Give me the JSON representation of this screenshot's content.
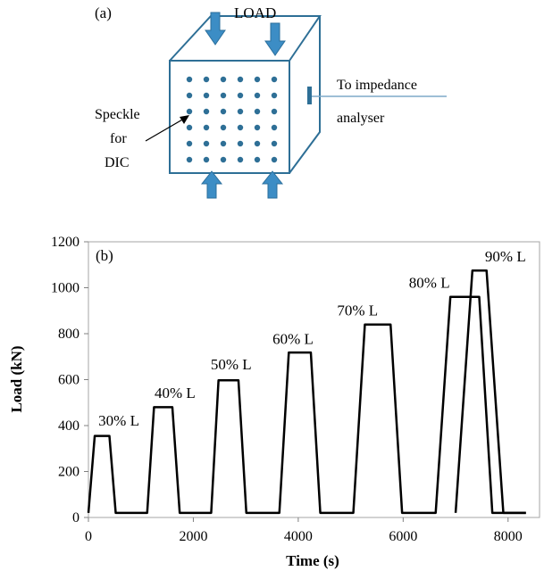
{
  "schematic": {
    "panel_label": "(a)",
    "load_label": "LOAD",
    "impedance_label_line1": "To impedance",
    "impedance_label_line2": "analyser",
    "speckle_label_line1": "Speckle",
    "speckle_label_line2": "for",
    "speckle_label_line3": "DIC",
    "colors": {
      "cube_edge": "#2e6f96",
      "arrow": "#3c8dc5",
      "dot": "#2e6f96",
      "wire": "#7fa9c9"
    }
  },
  "chart_data": {
    "type": "line",
    "panel_label": "(b)",
    "xlabel": "Time (s)",
    "ylabel": "Load (kN)",
    "xlim": [
      0,
      8600
    ],
    "ylim": [
      0,
      1200
    ],
    "xticks": [
      0,
      2000,
      4000,
      6000,
      8000
    ],
    "yticks": [
      0,
      200,
      400,
      600,
      800,
      1000,
      1200
    ],
    "grid": false,
    "series": [
      {
        "color": "#000000",
        "x": [
          0,
          120,
          400,
          520,
          820,
          1120,
          1250,
          1600,
          1740,
          2040,
          2340,
          2480,
          2860,
          3010,
          3320,
          3640,
          3820,
          4240,
          4420,
          4740,
          5050,
          5270,
          5760,
          5980,
          6300,
          6620,
          6900,
          7450,
          7700,
          8020,
          8340
        ],
        "y": [
          20,
          355,
          355,
          20,
          20,
          20,
          480,
          480,
          20,
          20,
          20,
          597,
          597,
          20,
          20,
          20,
          718,
          718,
          20,
          20,
          20,
          840,
          840,
          20,
          20,
          20,
          960,
          960,
          20,
          20,
          20
        ]
      },
      {
        "color": "#000000",
        "x": [
          7000,
          7320,
          7590,
          7910,
          8340
        ],
        "y": [
          20,
          1075,
          1075,
          20,
          20
        ]
      }
    ],
    "annotations": [
      {
        "text": "30% L",
        "x": 580,
        "y": 400
      },
      {
        "text": "40% L",
        "x": 1650,
        "y": 520
      },
      {
        "text": "50% L",
        "x": 2720,
        "y": 645
      },
      {
        "text": "60% L",
        "x": 3900,
        "y": 755
      },
      {
        "text": "70% L",
        "x": 5130,
        "y": 880
      },
      {
        "text": "80% L",
        "x": 6500,
        "y": 1000
      },
      {
        "text": "90% L",
        "x": 7950,
        "y": 1115
      }
    ]
  }
}
